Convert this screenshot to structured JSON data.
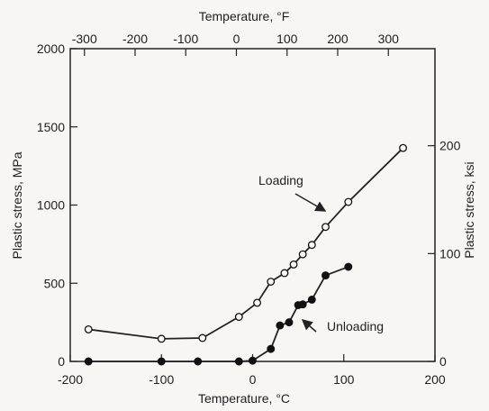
{
  "chart_data": {
    "type": "line",
    "bottom_axis": {
      "label": "Temperature, °C",
      "range": [
        -200,
        200
      ],
      "ticks": [
        -200,
        -100,
        0,
        100,
        200
      ]
    },
    "top_axis": {
      "label": "Temperature, °F",
      "range": [
        -328,
        392
      ],
      "ticks": [
        -300,
        -200,
        -100,
        0,
        100,
        200,
        300
      ]
    },
    "left_axis": {
      "label": "Plastic stress, MPa",
      "range": [
        0,
        2000
      ],
      "ticks": [
        0,
        500,
        1000,
        1500,
        2000
      ]
    },
    "right_axis": {
      "label": "Plastic stress, ksi",
      "range": [
        0,
        290
      ],
      "ticks": [
        0,
        100,
        200
      ]
    },
    "series": [
      {
        "name": "Loading",
        "marker": "open-circle",
        "points": [
          [
            -180,
            205
          ],
          [
            -100,
            145
          ],
          [
            -55,
            150
          ],
          [
            -15,
            285
          ],
          [
            5,
            375
          ],
          [
            20,
            510
          ],
          [
            35,
            565
          ],
          [
            45,
            620
          ],
          [
            55,
            685
          ],
          [
            65,
            745
          ],
          [
            80,
            860
          ],
          [
            105,
            1020
          ],
          [
            165,
            1365
          ]
        ]
      },
      {
        "name": "Unloading",
        "marker": "filled-circle",
        "points": [
          [
            -180,
            0
          ],
          [
            -100,
            0
          ],
          [
            -60,
            0
          ],
          [
            -15,
            0
          ],
          [
            0,
            5
          ],
          [
            20,
            80
          ],
          [
            30,
            230
          ],
          [
            40,
            250
          ],
          [
            50,
            360
          ],
          [
            55,
            365
          ],
          [
            65,
            395
          ],
          [
            80,
            550
          ],
          [
            105,
            605
          ]
        ]
      }
    ],
    "annotations": {
      "loading": "Loading",
      "unloading": "Unloading"
    }
  }
}
